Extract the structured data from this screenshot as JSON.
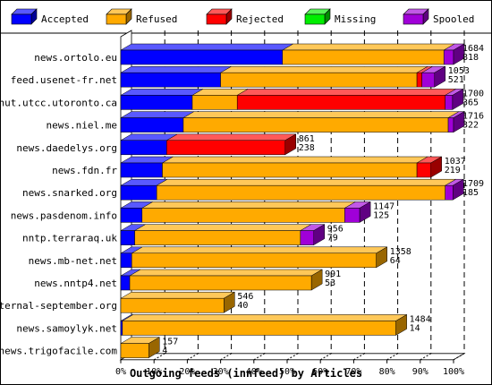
{
  "chart_data": {
    "type": "bar",
    "orientation": "horizontal",
    "stacked": true,
    "title": "",
    "xlabel": "Outgoing feeds (innfeed) by Articles",
    "ylabel": "",
    "xlim": [
      0,
      100
    ],
    "x_ticks": [
      "0%",
      "10%",
      "20%",
      "30%",
      "40%",
      "50%",
      "60%",
      "70%",
      "80%",
      "90%",
      "100%"
    ],
    "grid": "vertical dashed",
    "legend_position": "top",
    "categories": [
      "news.ortolo.eu",
      "feed.usenet-fr.net",
      "nut.utcc.utoronto.ca",
      "news.niel.me",
      "news.daedelys.org",
      "news.fdn.fr",
      "news.snarked.org",
      "news.pasdenom.info",
      "nntp.terraraq.uk",
      "news.mb-net.net",
      "news.nntp4.net",
      "eternal-september.org",
      "news.samoylyk.net",
      "news.trigofacile.com"
    ],
    "annotations_offered": [
      "1684",
      "1053",
      "1700",
      "1716",
      "861",
      "1037",
      "1709",
      "1147",
      "956",
      "1358",
      "991",
      "546",
      "1484",
      "157"
    ],
    "annotations_accepted": [
      "818",
      "521",
      "365",
      "322",
      "238",
      "219",
      "185",
      "125",
      "79",
      "64",
      "53",
      "40",
      "14",
      "4"
    ],
    "series": [
      {
        "name": "Accepted",
        "color": "#0000ff",
        "values": [
          48.6,
          30.0,
          21.5,
          18.8,
          13.8,
          12.5,
          10.8,
          6.4,
          4.2,
          3.3,
          2.7,
          0.0,
          0.5,
          0.0
        ]
      },
      {
        "name": "Refused",
        "color": "#ffaa00",
        "values": [
          48.5,
          59.0,
          13.5,
          79.6,
          0.0,
          76.5,
          86.7,
          60.9,
          49.8,
          73.5,
          54.6,
          31.0,
          82.2,
          8.4
        ]
      },
      {
        "name": "Rejected",
        "color": "#ff0000",
        "values": [
          0.0,
          1.5,
          62.5,
          0.0,
          35.6,
          4.2,
          0.0,
          0.0,
          0.0,
          0.0,
          0.0,
          0.0,
          0.0,
          0.0
        ]
      },
      {
        "name": "Missing",
        "color": "#00ee00",
        "values": [
          0,
          0,
          0,
          0,
          0,
          0,
          0,
          0,
          0,
          0,
          0,
          0,
          0,
          0
        ]
      },
      {
        "name": "Spooled",
        "color": "#a000d8",
        "values": [
          2.9,
          3.8,
          2.2,
          1.6,
          0.0,
          0.0,
          2.3,
          4.5,
          4.0,
          0.0,
          0.0,
          0.0,
          0.0,
          0.0
        ]
      }
    ]
  }
}
